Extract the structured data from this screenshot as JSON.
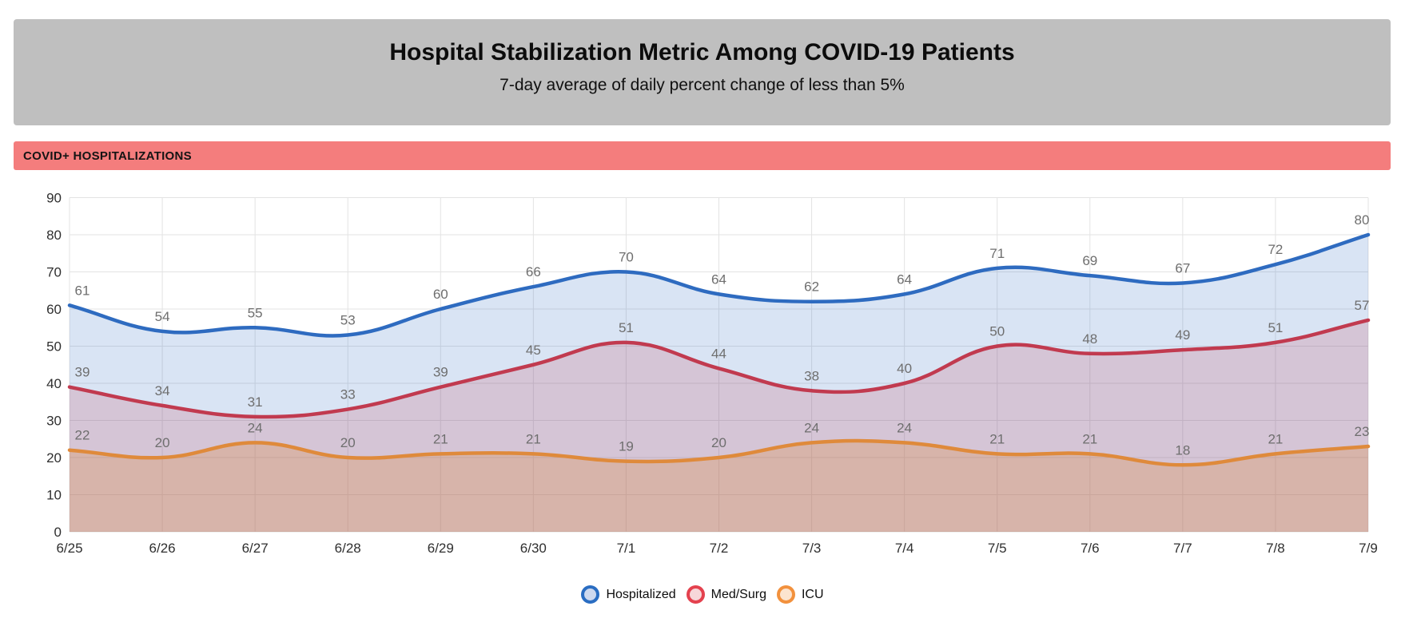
{
  "header": {
    "title": "Hospital Stabilization Metric Among COVID-19 Patients",
    "subtitle": "7-day average of daily percent change of less than 5%",
    "background": "#bfbfbf"
  },
  "section": {
    "label": "COVID+ HOSPITALIZATIONS",
    "background": "#f47d7d",
    "text_color": "#141414"
  },
  "chart_data": {
    "type": "area",
    "x": [
      "6/25",
      "6/26",
      "6/27",
      "6/28",
      "6/29",
      "6/30",
      "7/1",
      "7/2",
      "7/3",
      "7/4",
      "7/5",
      "7/6",
      "7/7",
      "7/8",
      "7/9"
    ],
    "series": [
      {
        "name": "Hospitalized",
        "values": [
          61,
          54,
          55,
          53,
          60,
          66,
          70,
          64,
          62,
          64,
          71,
          69,
          67,
          72,
          80
        ],
        "line_color": "#2e6bc0",
        "fill_color": "rgba(46,107,192,0.18)",
        "legend_ring_color": "#2a6dc2",
        "legend_fill_color": "#cdd9ef"
      },
      {
        "name": "Med/Surg",
        "values": [
          39,
          34,
          31,
          33,
          39,
          45,
          51,
          44,
          38,
          40,
          50,
          48,
          49,
          51,
          57
        ],
        "line_color": "#c13a4f",
        "fill_color": "rgba(193,58,79,0.18)",
        "legend_ring_color": "#e4414e",
        "legend_fill_color": "#f7d7d9"
      },
      {
        "name": "ICU",
        "values": [
          22,
          20,
          24,
          20,
          21,
          21,
          19,
          20,
          24,
          24,
          21,
          21,
          18,
          21,
          23
        ],
        "line_color": "#df8a3b",
        "fill_color": "rgba(223,138,59,0.28)",
        "legend_ring_color": "#f2913d",
        "legend_fill_color": "#fce4cf"
      }
    ],
    "ylim": [
      0,
      90
    ],
    "ytick_step": 10,
    "grid": true,
    "legend_position": "bottom",
    "axis_tick_color": "#2f2f2f",
    "data_label_color": "#6e6e6e",
    "grid_color": "#e3e3e3"
  }
}
